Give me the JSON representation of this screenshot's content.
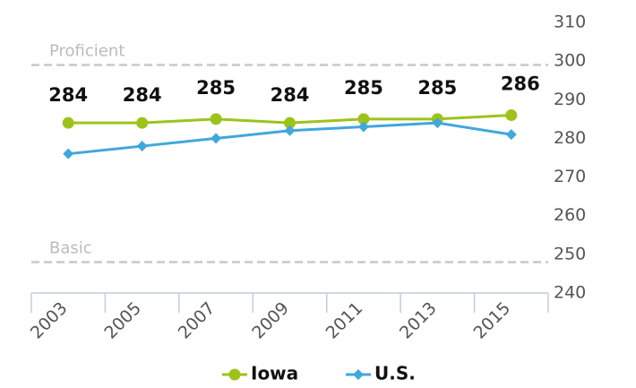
{
  "chart_data": {
    "type": "line",
    "categories": [
      "2003",
      "2005",
      "2007",
      "2009",
      "2011",
      "2013",
      "2015"
    ],
    "series": [
      {
        "name": "Iowa",
        "color": "#9dc31a",
        "marker": "circle",
        "values": [
          284,
          284,
          285,
          284,
          285,
          285,
          286
        ]
      },
      {
        "name": "U.S.",
        "color": "#41a7dc",
        "marker": "diamond",
        "values": [
          276,
          278,
          280,
          282,
          283,
          284,
          281
        ]
      }
    ],
    "thresholds": [
      {
        "label": "Proficient",
        "value": 299
      },
      {
        "label": "Basic",
        "value": 248
      }
    ],
    "ylim": [
      240,
      310
    ],
    "yticks": [
      240,
      250,
      260,
      270,
      280,
      290,
      300,
      310
    ],
    "y_axis_side": "right",
    "grid": false,
    "legend": "bottom"
  }
}
